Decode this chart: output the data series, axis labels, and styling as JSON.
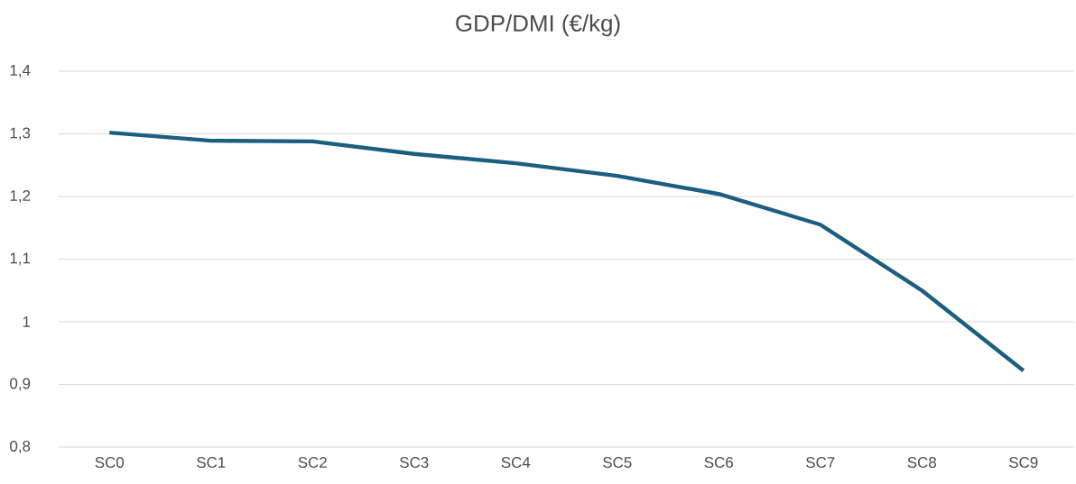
{
  "chart_data": {
    "type": "line",
    "title": "GDP/DMI (€/kg)",
    "categories": [
      "SC0",
      "SC1",
      "SC2",
      "SC3",
      "SC4",
      "SC5",
      "SC6",
      "SC7",
      "SC8",
      "SC9"
    ],
    "values": [
      1.302,
      1.289,
      1.288,
      1.268,
      1.253,
      1.233,
      1.204,
      1.155,
      1.05,
      0.922
    ],
    "color": "#1b5e80",
    "marker": "none",
    "grid": "y",
    "ylim": [
      0.8,
      1.4
    ],
    "yticks": [
      {
        "value": 0.8,
        "label": "0,8"
      },
      {
        "value": 0.9,
        "label": "0,9"
      },
      1,
      {
        "value": 1.1,
        "label": "1,1"
      },
      {
        "value": 1.2,
        "label": "1,2"
      },
      {
        "value": 1.3,
        "label": "1,3"
      },
      {
        "value": 1.4,
        "label": "1,4"
      }
    ]
  }
}
